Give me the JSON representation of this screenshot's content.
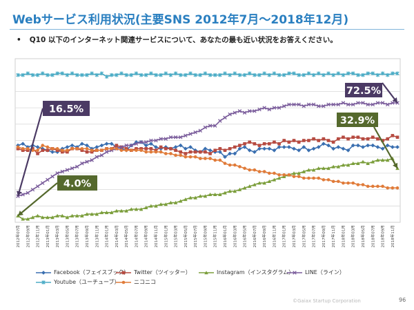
{
  "header": {
    "title": "Webサービス利用状況(主要SNS 2012年7月～2018年12月)",
    "question": "Q10 以下のインターネット関連サービスについて、あなたの最も近い状況をお答えください。"
  },
  "footer": {
    "copyright": "©Gaiax Startup Corporation",
    "page": "96"
  },
  "chart_data": {
    "type": "line",
    "title": "Webサービス利用状況(主要SNS 2012年7月～2018年12月)",
    "xlabel": "",
    "ylabel": "",
    "ylim": [
      0,
      100
    ],
    "grid": true,
    "legend_position": "bottom",
    "categories": [
      "2012年07月",
      "2012年08月",
      "2012年09月",
      "2012年10月",
      "2012年11月",
      "2012年12月",
      "2013年01月",
      "2013年02月",
      "2013年03月",
      "2013年04月",
      "2013年05月",
      "2013年06月",
      "2013年07月",
      "2013年08月",
      "2013年09月",
      "2013年10月",
      "2013年11月",
      "2013年12月",
      "2014年01月",
      "2014年02月",
      "2014年03月",
      "2014年04月",
      "2014年05月",
      "2014年06月",
      "2014年07月",
      "2014年08月",
      "2014年09月",
      "2014年10月",
      "2014年11月",
      "2014年12月",
      "2015年01月",
      "2015年02月",
      "2015年03月",
      "2015年04月",
      "2015年05月",
      "2015年06月",
      "2015年07月",
      "2015年08月",
      "2015年09月",
      "2015年10月",
      "2015年11月",
      "2015年12月",
      "2016年01月",
      "2016年02月",
      "2016年03月",
      "2016年04月",
      "2016年05月",
      "2016年06月",
      "2016年07月",
      "2016年08月",
      "2016年09月",
      "2016年10月",
      "2016年11月",
      "2016年12月",
      "2017年01月",
      "2017年02月",
      "2017年03月",
      "2017年04月",
      "2017年05月",
      "2017年06月",
      "2017年07月",
      "2017年08月",
      "2017年09月",
      "2017年10月",
      "2017年11月",
      "2017年12月",
      "2018年01月",
      "2018年02月",
      "2018年03月",
      "2018年04月",
      "2018年05月",
      "2018年06月",
      "2018年07月",
      "2018年08月",
      "2018年09月",
      "2018年10月",
      "2018年11月",
      "2018年12月"
    ],
    "tick_labels": [
      "2012年07月",
      "2012年09月",
      "2012年11月",
      "2013年01月",
      "2013年03月",
      "2013年05月",
      "2013年07月",
      "2013年09月",
      "2013年11月",
      "2014年01月",
      "2014年03月",
      "2014年05月",
      "2014年07月",
      "2014年09月",
      "2014年11月",
      "2015年01月",
      "2015年03月",
      "2015年05月",
      "2015年07月",
      "2015年09月",
      "2015年11月",
      "2016年01月",
      "2016年03月",
      "2016年05月",
      "2016年07月",
      "2016年09月",
      "2016年11月",
      "2017年01月",
      "2017年03月",
      "2017年05月",
      "2017年07月",
      "2017年09月",
      "2017年11月",
      "2018年01月",
      "2018年03月",
      "2018年05月",
      "2018年07月",
      "2018年09月",
      "2018年11月"
    ],
    "series": [
      {
        "name": "Facebook（フェイスブック）",
        "color": "#3a6fb0",
        "marker": "diamond",
        "values": [
          47,
          48,
          46,
          47,
          46,
          45,
          44,
          43,
          43,
          45,
          46,
          47,
          46,
          48,
          47,
          45,
          46,
          47,
          48,
          48,
          46,
          45,
          44,
          47,
          49,
          49,
          47,
          48,
          46,
          45,
          46,
          45,
          46,
          47,
          45,
          46,
          44,
          43,
          45,
          44,
          43,
          43,
          40,
          42,
          42,
          45,
          46,
          44,
          43,
          45,
          45,
          45,
          44,
          46,
          46,
          46,
          45,
          44,
          46,
          44,
          45,
          46,
          48,
          47,
          45,
          46,
          45,
          44,
          47,
          47,
          46,
          47,
          47,
          46,
          45,
          47,
          46,
          46
        ]
      },
      {
        "name": "Twitter（ツイッター）",
        "color": "#b64b41",
        "marker": "square",
        "values": [
          45,
          44,
          44,
          45,
          42,
          44,
          44,
          45,
          44,
          43,
          43,
          45,
          45,
          44,
          43,
          43,
          44,
          44,
          45,
          45,
          47,
          46,
          45,
          44,
          45,
          45,
          45,
          45,
          44,
          46,
          45,
          45,
          44,
          43,
          42,
          43,
          43,
          43,
          43,
          42,
          44,
          45,
          44,
          45,
          46,
          47,
          48,
          49,
          48,
          47,
          48,
          48,
          49,
          48,
          50,
          49,
          50,
          49,
          50,
          50,
          51,
          50,
          51,
          50,
          49,
          51,
          52,
          51,
          52,
          52,
          51,
          51,
          52,
          51,
          50,
          51,
          53,
          52
        ]
      },
      {
        "name": "Instagram（インスタグラム）",
        "color": "#7b9e3b",
        "marker": "triangle",
        "values": [
          4,
          2,
          2,
          3,
          4,
          3,
          3,
          3,
          4,
          4,
          3,
          4,
          4,
          4,
          5,
          5,
          5,
          6,
          6,
          6,
          7,
          7,
          7,
          8,
          8,
          8,
          9,
          10,
          10,
          11,
          11,
          12,
          12,
          13,
          14,
          15,
          15,
          16,
          16,
          17,
          17,
          17,
          18,
          19,
          19,
          20,
          21,
          22,
          23,
          24,
          24,
          25,
          26,
          27,
          28,
          29,
          30,
          30,
          31,
          32,
          32,
          33,
          33,
          33,
          34,
          34,
          35,
          35,
          36,
          36,
          37,
          36,
          37,
          38,
          38,
          38,
          39,
          33
        ]
      },
      {
        "name": "LINE（ライン）",
        "color": "#7a5c9b",
        "marker": "x",
        "values": [
          16,
          17,
          18,
          20,
          22,
          24,
          26,
          28,
          30,
          31,
          32,
          33,
          34,
          36,
          37,
          38,
          40,
          41,
          43,
          44,
          45,
          46,
          47,
          47,
          48,
          49,
          49,
          50,
          50,
          51,
          51,
          52,
          52,
          52,
          53,
          54,
          55,
          56,
          58,
          59,
          59,
          62,
          64,
          66,
          67,
          68,
          67,
          68,
          68,
          69,
          70,
          69,
          70,
          70,
          71,
          72,
          72,
          72,
          71,
          72,
          72,
          71,
          71,
          72,
          72,
          72,
          73,
          72,
          72,
          73,
          73,
          72,
          72,
          73,
          73,
          72,
          73,
          73
        ]
      },
      {
        "name": "Youtube（ユーチューブ）",
        "color": "#4bacc6",
        "marker": "star",
        "values": [
          90,
          90,
          91,
          90,
          90,
          91,
          90,
          90,
          91,
          91,
          90,
          91,
          90,
          90,
          90,
          91,
          90,
          91,
          89,
          90,
          90,
          91,
          90,
          90,
          91,
          90,
          90,
          91,
          90,
          90,
          91,
          90,
          91,
          90,
          90,
          91,
          90,
          90,
          91,
          90,
          90,
          90,
          91,
          90,
          91,
          90,
          90,
          91,
          90,
          90,
          91,
          90,
          91,
          90,
          90,
          91,
          91,
          90,
          90,
          91,
          90,
          91,
          90,
          91,
          90,
          91,
          90,
          91,
          91,
          90,
          90,
          91,
          91,
          90,
          91,
          90,
          91,
          91
        ]
      },
      {
        "name": "ニコニコ",
        "color": "#e07b39",
        "marker": "circle",
        "values": [
          46,
          45,
          45,
          44,
          44,
          47,
          46,
          45,
          45,
          44,
          44,
          45,
          45,
          45,
          45,
          44,
          44,
          44,
          45,
          45,
          45,
          44,
          44,
          44,
          44,
          44,
          43,
          43,
          43,
          43,
          42,
          42,
          41,
          41,
          40,
          40,
          40,
          39,
          39,
          39,
          38,
          38,
          36,
          35,
          35,
          34,
          33,
          32,
          32,
          31,
          31,
          30,
          30,
          29,
          29,
          29,
          28,
          28,
          27,
          27,
          27,
          27,
          26,
          26,
          25,
          25,
          24,
          24,
          24,
          23,
          23,
          22,
          22,
          22,
          22,
          21,
          21,
          21
        ]
      }
    ],
    "annotations": [
      {
        "text": "16.5%",
        "series": "LINE（ライン）",
        "index": 0,
        "bg": "#4b3a64"
      },
      {
        "text": "4.0%",
        "series": "Instagram（インスタグラム）",
        "index": 0,
        "bg": "#55692d"
      },
      {
        "text": "72.5%",
        "series": "LINE（ライン）",
        "index": 77,
        "bg": "#4b3a64"
      },
      {
        "text": "32.9%",
        "series": "Instagram（インスタグラム）",
        "index": 77,
        "bg": "#55692d"
      }
    ]
  }
}
